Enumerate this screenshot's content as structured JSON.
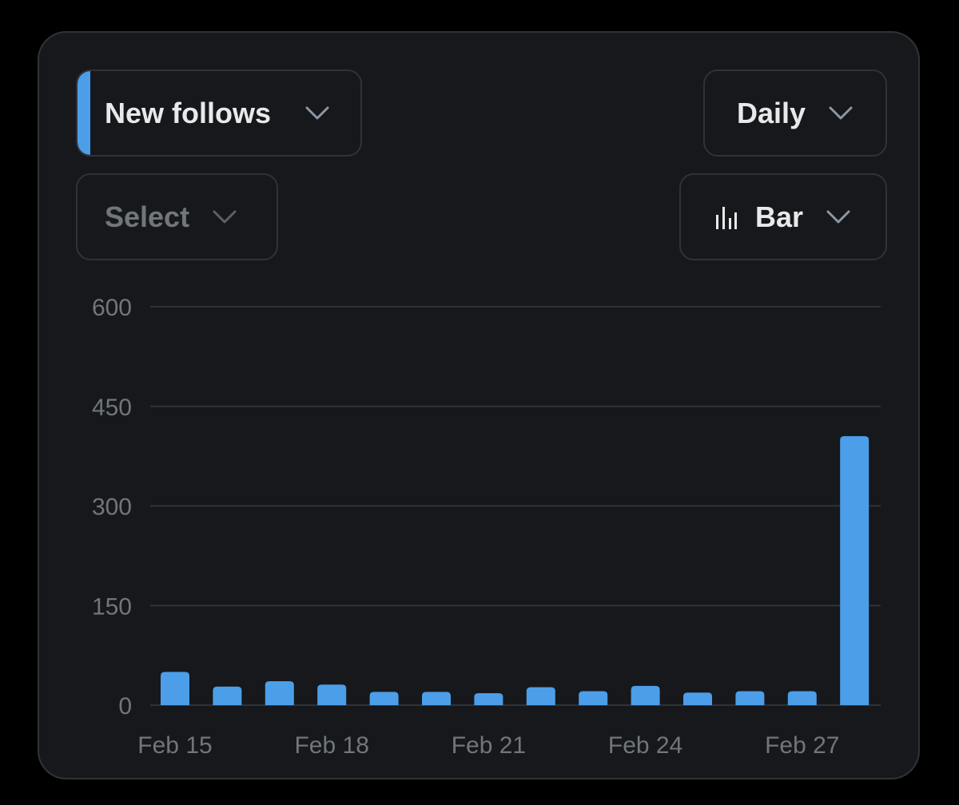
{
  "controls": {
    "metric": {
      "label": "New follows",
      "accent_color": "#4c9ee8"
    },
    "period": {
      "label": "Daily"
    },
    "compare": {
      "label": "Select"
    },
    "chart_type": {
      "label": "Bar",
      "icon": "bar-chart-icon"
    }
  },
  "colors": {
    "bar": "#4c9ee8",
    "grid": "#2f3336",
    "ticks": "#71767b"
  },
  "chart_data": {
    "type": "bar",
    "categories": [
      "Feb 15",
      "Feb 16",
      "Feb 17",
      "Feb 18",
      "Feb 19",
      "Feb 20",
      "Feb 21",
      "Feb 22",
      "Feb 23",
      "Feb 24",
      "Feb 25",
      "Feb 26",
      "Feb 27",
      "Feb 28"
    ],
    "x_tick_labels": [
      "Feb 15",
      "Feb 18",
      "Feb 21",
      "Feb 24",
      "Feb 27"
    ],
    "values": [
      50,
      28,
      36,
      31,
      20,
      20,
      18,
      27,
      21,
      29,
      19,
      21,
      21,
      405
    ],
    "ylim": [
      0,
      600
    ],
    "y_ticks": [
      0,
      150,
      300,
      450,
      600
    ],
    "grid": true,
    "legend": "none"
  }
}
